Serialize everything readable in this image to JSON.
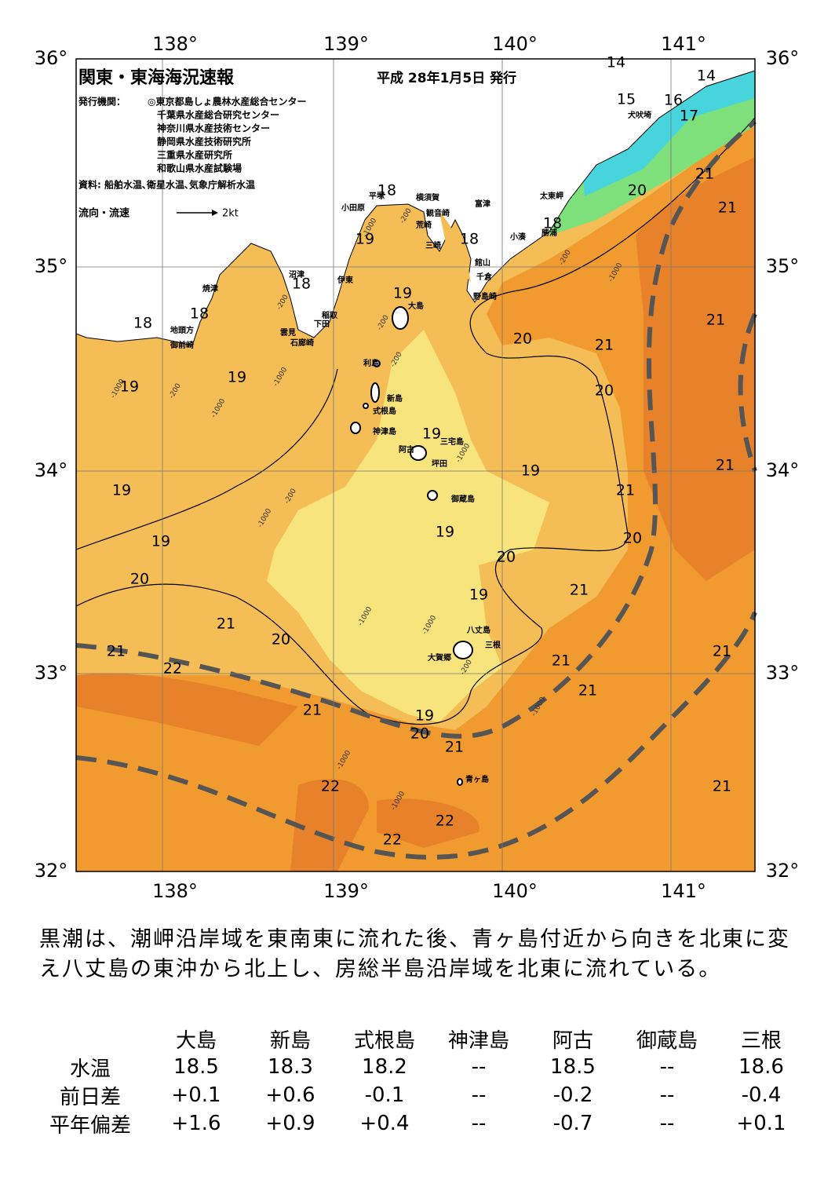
{
  "header": {
    "title": "関東・東海海況速報",
    "date": "平成 28年1月5日 発行",
    "publisher_label": "発行機関：",
    "publishers": [
      "◎東京都島しょ農林水産総合センター",
      "千葉県水産総合研究センター",
      "神奈川県水産技術センター",
      "静岡県水産技術研究所",
      "三重県水産研究所",
      "和歌山県水産試験場"
    ],
    "source": "資料: 船舶水温､衛星水温､気象庁解析水温",
    "legend": "流向・流速",
    "legend_scale": "2kt"
  },
  "map": {
    "lon_labels": [
      "138°",
      "139°",
      "140°",
      "141°"
    ],
    "lat_labels": [
      "36°",
      "35°",
      "34°",
      "33°",
      "32°"
    ],
    "isotherm_labels": [
      14,
      14,
      15,
      16,
      17,
      18,
      19,
      18,
      18,
      21,
      20,
      21,
      18,
      19,
      18,
      18,
      21,
      20,
      21,
      19,
      19,
      20,
      19,
      21,
      19,
      19,
      21,
      19,
      20,
      19,
      20,
      20,
      21,
      19,
      21,
      20,
      21,
      22,
      21,
      21,
      21,
      21,
      19,
      20,
      21,
      22,
      21,
      22,
      22
    ],
    "isobath_labels": [
      -200,
      -1000,
      -200,
      -1000,
      -200,
      -200,
      -200,
      -1000,
      -1000,
      -200,
      -1000,
      -1000,
      -1000,
      -200,
      -1000,
      -1000,
      -200,
      -1000,
      -1000,
      -1000
    ],
    "places": [
      "犬吠埼",
      "太東岬",
      "勝浦",
      "小湊",
      "富津",
      "横須賀",
      "観音崎",
      "平塚",
      "荒崎",
      "三崎",
      "館山",
      "千倉",
      "野島崎",
      "小田原",
      "沼津",
      "伊東",
      "大島",
      "稲取",
      "下田",
      "雲見",
      "石廊崎",
      "焼津",
      "地頭方",
      "御前崎",
      "利島",
      "新島",
      "式根島",
      "神津島",
      "三宅島",
      "阿古",
      "坪田",
      "御蔵島",
      "八丈島",
      "三根",
      "大賀郷",
      "青ヶ島"
    ]
  },
  "summary": "黒潮は、潮岬沿岸域を東南東に流れた後、青ヶ島付近から向きを北東に変え八丈島の東沖から北上し、房総半島沿岸域を北東に流れている。",
  "table": {
    "columns": [
      "大島",
      "新島",
      "式根島",
      "神津島",
      "阿古",
      "御蔵島",
      "三根"
    ],
    "rows": [
      {
        "label": "水温",
        "values": [
          "18.5",
          "18.3",
          "18.2",
          "--",
          "18.5",
          "--",
          "18.6"
        ]
      },
      {
        "label": "前日差",
        "values": [
          "+0.1",
          "+0.6",
          "-0.1",
          "--",
          "-0.2",
          "--",
          "-0.4"
        ]
      },
      {
        "label": "平年偏差",
        "values": [
          "+1.6",
          "+0.9",
          "+0.4",
          "--",
          "-0.7",
          "--",
          "+0.1"
        ]
      }
    ]
  }
}
